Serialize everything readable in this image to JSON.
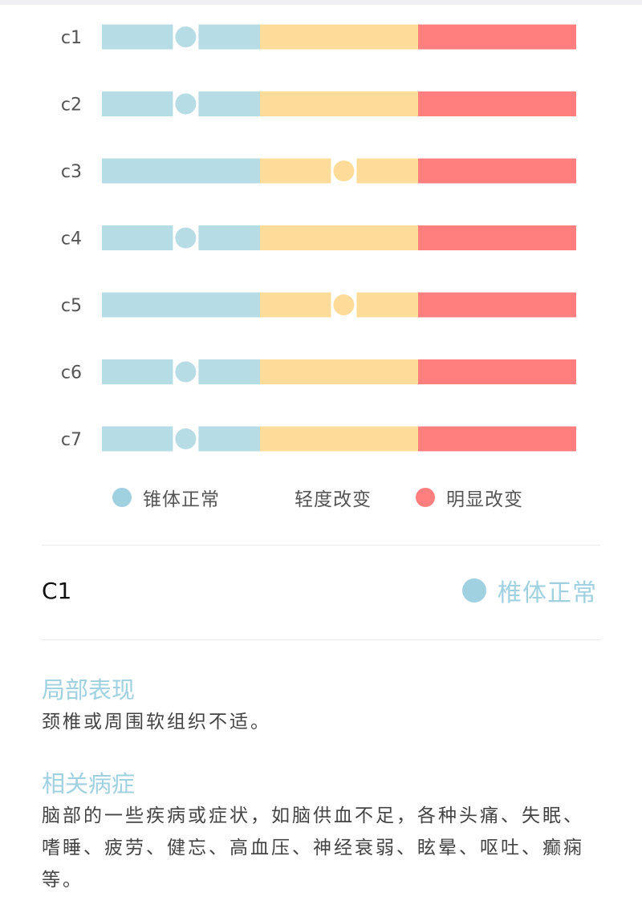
{
  "chart_data": {
    "type": "scale-indicator",
    "rows": [
      {
        "label": "c1",
        "level": "正常"
      },
      {
        "label": "c2",
        "level": "正常"
      },
      {
        "label": "c3",
        "level": "轻度"
      },
      {
        "label": "c4",
        "level": "正常"
      },
      {
        "label": "c5",
        "level": "轻度"
      },
      {
        "label": "c6",
        "level": "正常"
      },
      {
        "label": "c7",
        "level": "正常"
      }
    ],
    "segments": [
      {
        "key": "正常",
        "color": "#b6dce6"
      },
      {
        "key": "轻度",
        "color": "#fddc99"
      },
      {
        "key": "明显",
        "color": "#ff7f7f"
      }
    ],
    "marker_colors": {
      "正常": "#b6dce6",
      "轻度": "#fddc99"
    },
    "legend": [
      {
        "label": "锥体正常",
        "color": "#9fd1e1",
        "dot": true
      },
      {
        "label": "轻度改变",
        "color": "#fddc99",
        "dot": false
      },
      {
        "label": "明显改变",
        "color": "#ff7f7f",
        "dot": true
      }
    ]
  },
  "selected": {
    "name": "C1",
    "status": "椎体正常",
    "status_color": "#9fd1e1"
  },
  "sections": [
    {
      "title": "局部表现",
      "body": "颈椎或周围软组织不适。"
    },
    {
      "title": "相关病症",
      "body": "脑部的一些疾病或症状，如脑供血不足，各种头痛、失眠、嗜睡、疲劳、健忘、高血压、神经衰弱、眩晕、呕吐、癫痫等。"
    }
  ],
  "accent_color": "#9fd1e1"
}
